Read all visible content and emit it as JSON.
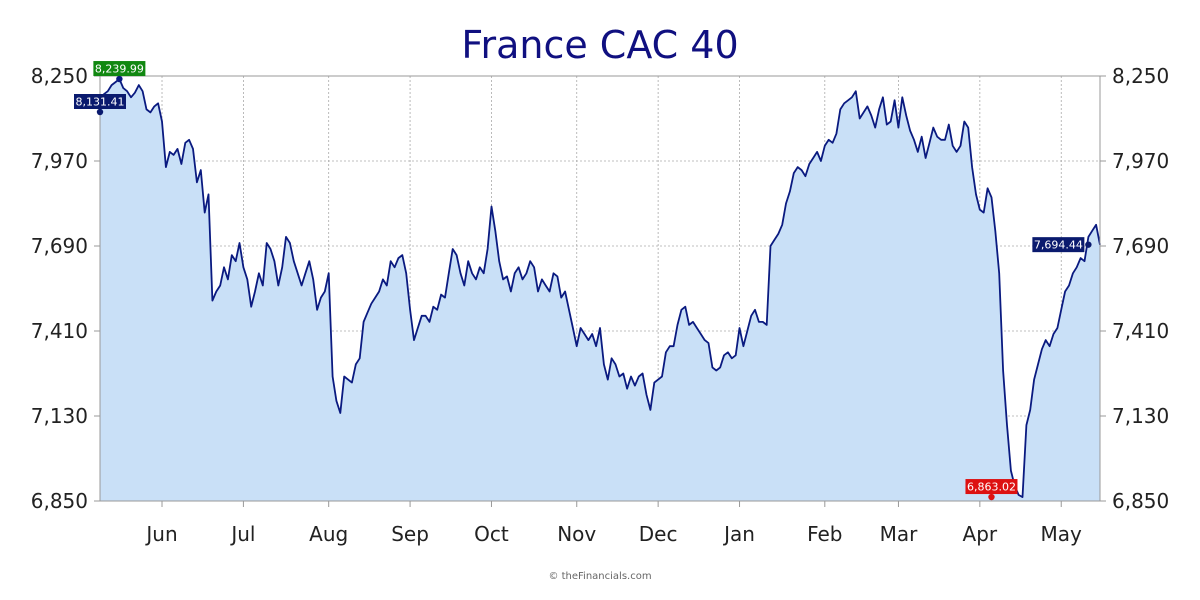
{
  "chart_data": {
    "type": "area",
    "title": "France CAC 40",
    "ylim": [
      6850,
      8250
    ],
    "y_ticks": [
      "8,250",
      "7,970",
      "7,690",
      "7,410",
      "7,130",
      "6,850"
    ],
    "y_tick_values": [
      8250,
      7970,
      7690,
      7410,
      7130,
      6850
    ],
    "x_ticks": [
      "Jun",
      "Jul",
      "Aug",
      "Sep",
      "Oct",
      "Nov",
      "Dec",
      "Jan",
      "Feb",
      "Mar",
      "Apr",
      "May"
    ],
    "x_tick_index": [
      16,
      37,
      59,
      80,
      101,
      123,
      144,
      165,
      187,
      206,
      227,
      248
    ],
    "grid": true,
    "colors": {
      "line": "#0a1a80",
      "fill": "#c9e0f7",
      "grid": "#aaaaaa",
      "max_tag": "#118811",
      "min_tag": "#dd1111",
      "tag": "#0a1a6e"
    },
    "annotations": {
      "start": {
        "label": "8,131.41",
        "index": 0,
        "value": 8131.41
      },
      "max": {
        "label": "8,239.99",
        "index": 5,
        "value": 8239.99
      },
      "min": {
        "label": "6,863.02",
        "index": 230,
        "value": 6863.02
      },
      "last": {
        "label": "7,694.44",
        "index": 255,
        "value": 7694.44
      }
    },
    "values": [
      8131,
      8190,
      8200,
      8220,
      8230,
      8240,
      8210,
      8200,
      8180,
      8195,
      8220,
      8200,
      8140,
      8130,
      8150,
      8160,
      8100,
      7950,
      8000,
      7990,
      8010,
      7960,
      8030,
      8040,
      8010,
      7900,
      7940,
      7800,
      7860,
      7510,
      7540,
      7560,
      7620,
      7580,
      7660,
      7640,
      7700,
      7620,
      7580,
      7490,
      7540,
      7600,
      7560,
      7700,
      7680,
      7640,
      7560,
      7620,
      7720,
      7700,
      7640,
      7600,
      7560,
      7600,
      7640,
      7580,
      7480,
      7520,
      7540,
      7600,
      7260,
      7180,
      7140,
      7260,
      7250,
      7240,
      7300,
      7320,
      7440,
      7470,
      7500,
      7520,
      7540,
      7580,
      7560,
      7640,
      7620,
      7650,
      7660,
      7600,
      7480,
      7380,
      7420,
      7460,
      7460,
      7440,
      7490,
      7480,
      7530,
      7520,
      7600,
      7680,
      7660,
      7600,
      7560,
      7640,
      7600,
      7580,
      7620,
      7600,
      7680,
      7820,
      7740,
      7640,
      7580,
      7590,
      7540,
      7600,
      7620,
      7580,
      7600,
      7640,
      7620,
      7540,
      7580,
      7560,
      7540,
      7600,
      7590,
      7520,
      7540,
      7480,
      7420,
      7360,
      7420,
      7400,
      7380,
      7400,
      7360,
      7420,
      7300,
      7250,
      7320,
      7300,
      7260,
      7270,
      7220,
      7260,
      7230,
      7260,
      7270,
      7200,
      7150,
      7240,
      7250,
      7260,
      7340,
      7360,
      7360,
      7430,
      7480,
      7490,
      7430,
      7440,
      7420,
      7400,
      7380,
      7370,
      7290,
      7280,
      7290,
      7330,
      7340,
      7320,
      7330,
      7420,
      7360,
      7410,
      7460,
      7480,
      7440,
      7440,
      7430,
      7690,
      7710,
      7730,
      7760,
      7830,
      7870,
      7930,
      7950,
      7940,
      7920,
      7960,
      7980,
      8000,
      7970,
      8020,
      8040,
      8030,
      8060,
      8140,
      8160,
      8170,
      8180,
      8200,
      8110,
      8130,
      8150,
      8120,
      8080,
      8140,
      8180,
      8090,
      8100,
      8170,
      8080,
      8180,
      8120,
      8070,
      8040,
      8000,
      8050,
      7980,
      8030,
      8080,
      8050,
      8040,
      8040,
      8090,
      8020,
      8000,
      8020,
      8100,
      8080,
      7950,
      7860,
      7810,
      7800,
      7880,
      7850,
      7740,
      7600,
      7280,
      7100,
      6950,
      6900,
      6870,
      6863,
      7100,
      7150,
      7250,
      7300,
      7350,
      7380,
      7360,
      7400,
      7420,
      7480,
      7540,
      7560,
      7600,
      7620,
      7650,
      7640,
      7720,
      7740,
      7760,
      7694
    ]
  }
}
